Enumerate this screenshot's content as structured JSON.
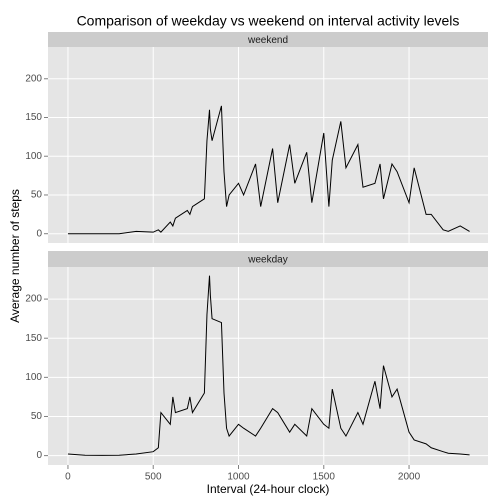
{
  "chart_data": {
    "type": "line",
    "title": "Comparison of weekday vs weekend on interval activity levels",
    "xlabel": "Interval (24-hour clock)",
    "ylabel": "Average number of steps",
    "color": "#000000",
    "grid": true,
    "xlim": [
      -117,
      2463
    ],
    "ylim": [
      -12,
      241
    ],
    "xticks": [
      0,
      500,
      1000,
      1500,
      2000
    ],
    "yticks": [
      0,
      50,
      100,
      150,
      200
    ],
    "x": [
      0,
      100,
      200,
      300,
      400,
      500,
      530,
      545,
      600,
      615,
      630,
      700,
      715,
      730,
      800,
      815,
      830,
      835,
      845,
      900,
      915,
      930,
      945,
      1000,
      1030,
      1100,
      1130,
      1200,
      1230,
      1300,
      1330,
      1400,
      1430,
      1500,
      1530,
      1550,
      1600,
      1630,
      1700,
      1730,
      1800,
      1830,
      1850,
      1900,
      1930,
      2000,
      2030,
      2100,
      2130,
      2200,
      2230,
      2300,
      2355
    ],
    "series": [
      {
        "name": "weekend",
        "values": [
          0,
          0,
          0,
          0,
          3,
          2,
          5,
          2,
          15,
          10,
          20,
          30,
          25,
          35,
          45,
          120,
          160,
          135,
          120,
          165,
          80,
          35,
          50,
          65,
          50,
          90,
          35,
          110,
          40,
          115,
          65,
          105,
          40,
          130,
          35,
          95,
          145,
          85,
          115,
          60,
          65,
          90,
          45,
          90,
          80,
          40,
          85,
          25,
          25,
          5,
          3,
          10,
          3
        ]
      },
      {
        "name": "weekday",
        "values": [
          2,
          0.5,
          0.3,
          0.5,
          2,
          5,
          10,
          55,
          40,
          75,
          55,
          60,
          75,
          55,
          80,
          180,
          230,
          205,
          175,
          170,
          80,
          35,
          25,
          40,
          35,
          25,
          35,
          60,
          55,
          30,
          40,
          25,
          60,
          40,
          35,
          85,
          35,
          25,
          55,
          40,
          95,
          60,
          115,
          75,
          85,
          30,
          20,
          15,
          10,
          5,
          3,
          2,
          1
        ]
      }
    ]
  }
}
